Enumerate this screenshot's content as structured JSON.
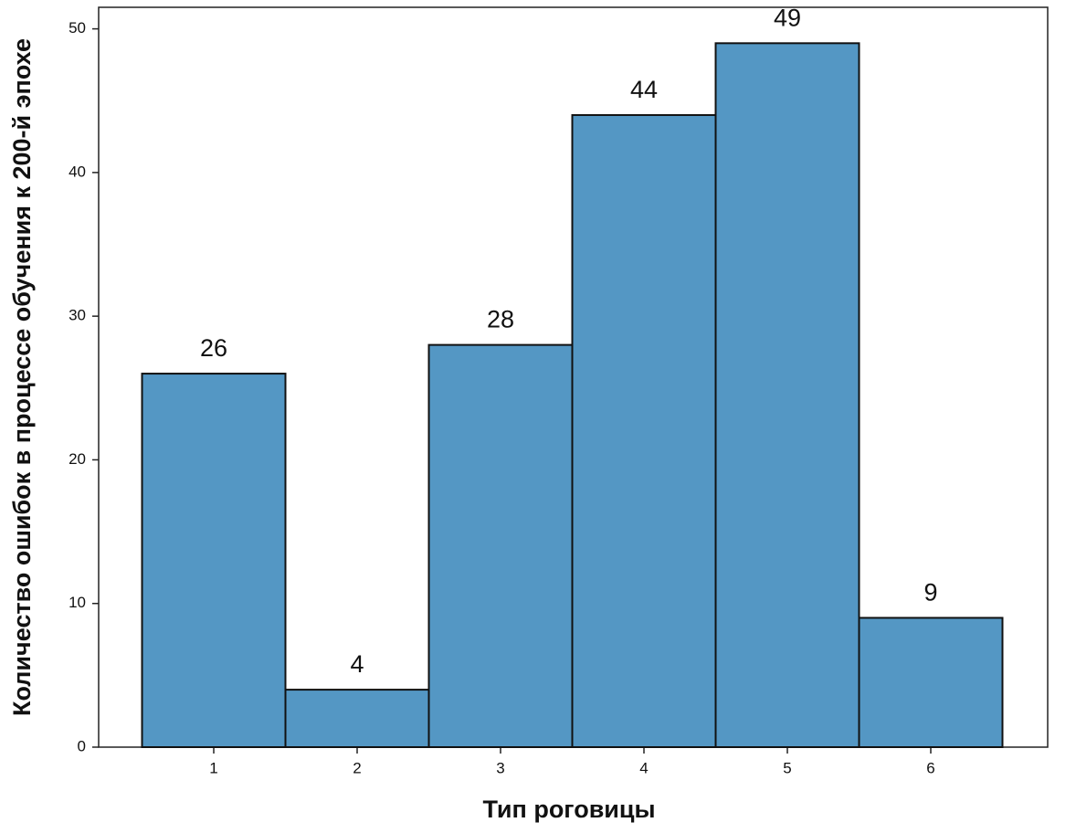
{
  "chart_data": {
    "type": "bar",
    "xlabel": "Тип роговицы",
    "ylabel": "Количество ошибок в процессе обучения к 200-й эпохе",
    "categories": [
      "1",
      "2",
      "3",
      "4",
      "5",
      "6"
    ],
    "values": [
      26,
      4,
      28,
      44,
      49,
      9
    ],
    "color": "#5497c4",
    "ylim": [
      0,
      51.5
    ],
    "yticks": [
      0,
      10,
      20,
      30,
      40,
      50
    ],
    "grid": false
  }
}
